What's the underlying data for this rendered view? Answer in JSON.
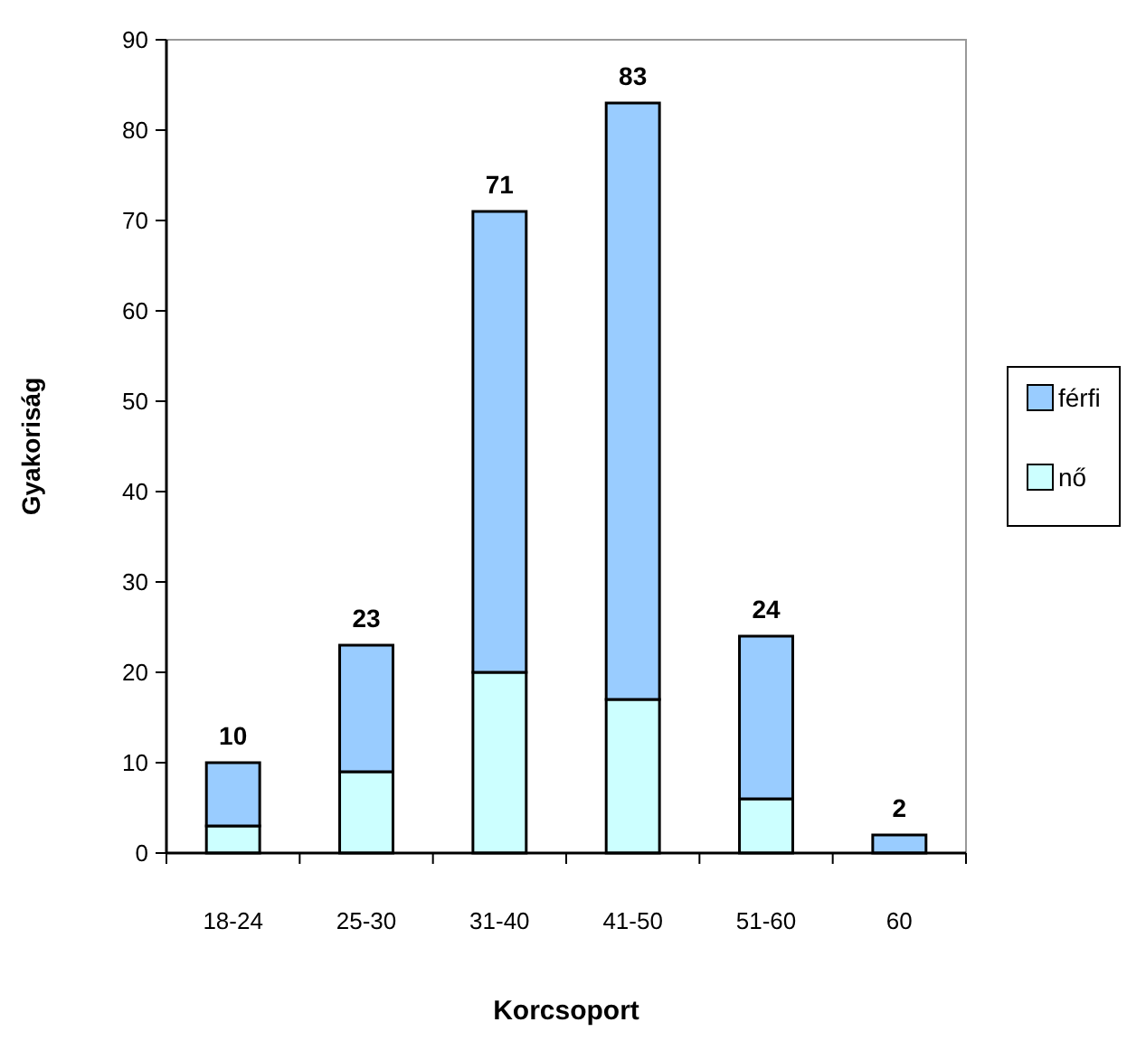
{
  "chart_data": {
    "type": "bar",
    "stacked": true,
    "xlabel": "Korcsoport",
    "ylabel": "Gyakoriság",
    "categories": [
      "18-24",
      "25-30",
      "31-40",
      "41-50",
      "51-60",
      "60"
    ],
    "series": [
      {
        "name": "nő",
        "color": "#ccffff",
        "values": [
          3,
          9,
          20,
          17,
          6,
          0
        ]
      },
      {
        "name": "férfi",
        "color": "#99ccff",
        "values": [
          7,
          14,
          51,
          66,
          18,
          2
        ]
      }
    ],
    "totals": [
      "10",
      "23",
      "71",
      "83",
      "24",
      "2"
    ],
    "ylim": [
      0,
      90
    ],
    "yticks": [
      0,
      10,
      20,
      30,
      40,
      50,
      60,
      70,
      80,
      90
    ],
    "grid": false,
    "legend": "right"
  }
}
